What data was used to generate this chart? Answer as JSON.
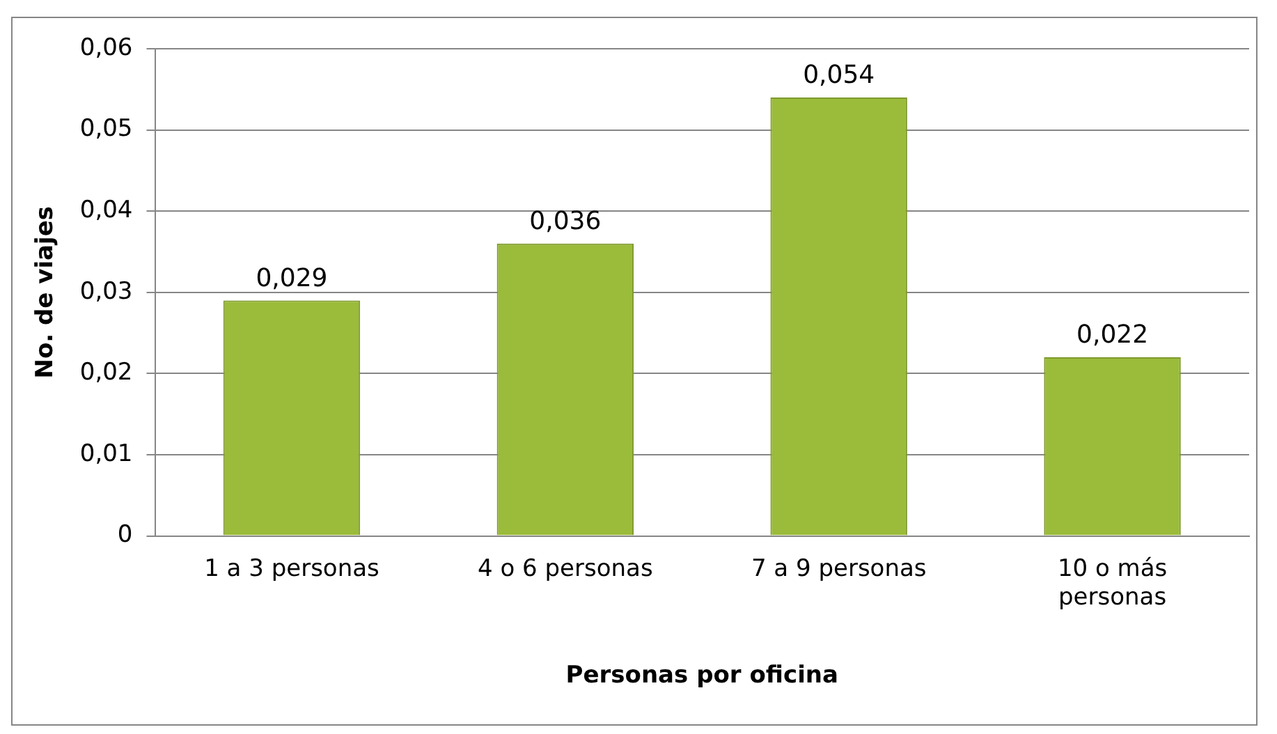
{
  "chart_data": {
    "type": "bar",
    "xlabel": "Personas por oficina",
    "ylabel": "No. de viajes",
    "categories": [
      "1 a 3 personas",
      "4 o 6 personas",
      "7 a 9 personas",
      "10 o más personas"
    ],
    "values": [
      0.029,
      0.036,
      0.054,
      0.022
    ],
    "color": "#9bbb3b",
    "value_labels": [
      "0,029",
      "0,036",
      "0,054",
      "0,022"
    ],
    "ylim": [
      0,
      0.06
    ],
    "yticks": [
      0,
      {
        "value": 0.01,
        "label": "0,01"
      },
      {
        "value": 0.02,
        "label": "0,02"
      },
      {
        "value": 0.03,
        "label": "0,03"
      },
      {
        "value": 0.04,
        "label": "0,04"
      },
      {
        "value": 0.05,
        "label": "0,05"
      },
      {
        "value": 0.06,
        "label": "0,06"
      }
    ],
    "grid": "y"
  }
}
